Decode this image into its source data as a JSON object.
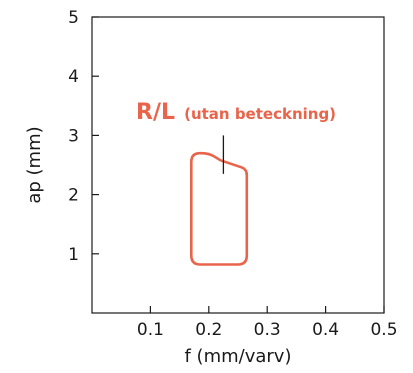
{
  "chart_data": {
    "type": "area",
    "xlabel": "f (mm/varv)",
    "ylabel": "ap (mm)",
    "xlim": [
      0,
      0.5
    ],
    "ylim": [
      0,
      5
    ],
    "xticks": [
      0.1,
      0.2,
      0.3,
      0.4,
      0.5
    ],
    "yticks": [
      1,
      2,
      3,
      4,
      5
    ],
    "xtick_labels": [
      "0.1",
      "0.2",
      "0.3",
      "0.4",
      "0.5"
    ],
    "ytick_labels": [
      "1",
      "2",
      "3",
      "4",
      "5"
    ],
    "grid": false,
    "region": {
      "shape": "rounded outline",
      "color": "#e8644a",
      "points": [
        {
          "x": 0.17,
          "y": 0.82
        },
        {
          "x": 0.265,
          "y": 0.82
        },
        {
          "x": 0.265,
          "y": 2.43
        },
        {
          "x": 0.22,
          "y": 2.58
        },
        {
          "x": 0.2,
          "y": 2.7
        },
        {
          "x": 0.17,
          "y": 2.7
        }
      ]
    },
    "annotation": {
      "main": "R/L",
      "sub": "(utan beteckning)",
      "color": "#e8644a",
      "leader_from": {
        "x": 0.225,
        "y": 3.0
      },
      "leader_to": {
        "x": 0.225,
        "y": 2.35
      }
    }
  }
}
